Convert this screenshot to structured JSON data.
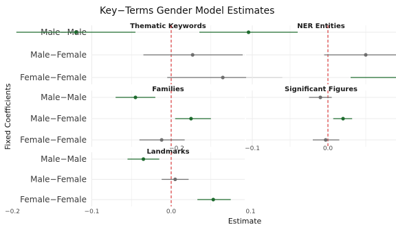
{
  "chart_data": {
    "type": "forest-plot",
    "title": "Key−Terms Gender Model Estimates",
    "xlabel": "Estimate",
    "ylabel": "Fixed Coefficients",
    "xlim": [
      -0.22,
      0.17
    ],
    "x_ticks": [
      "−0.2",
      "−0.1",
      "0.0",
      "0.1"
    ],
    "x_tick_values": [
      -0.2,
      -0.1,
      0.0,
      0.1
    ],
    "reference_line": 0.0,
    "categories": [
      "Male−Male",
      "Male−Female",
      "Female−Female"
    ],
    "grid": true,
    "colors": {
      "significant": "#1e6b2e",
      "not_significant": "#6e6e6e",
      "reference_line": "#d62728",
      "grid": "#ebebeb",
      "strip_background": "#ffffff"
    },
    "panels": [
      {
        "name": "Thematic Keywords",
        "series": [
          {
            "category": "Male−Male",
            "estimate": -0.12,
            "lower": -0.195,
            "upper": -0.045,
            "significant": true
          },
          {
            "category": "Male−Female",
            "estimate": 0.027,
            "lower": -0.035,
            "upper": 0.09,
            "significant": false
          },
          {
            "category": "Female−Female",
            "estimate": 0.065,
            "lower": -0.005,
            "upper": 0.14,
            "significant": false
          }
        ]
      },
      {
        "name": "NER Entities",
        "series": [
          {
            "category": "Male−Male",
            "estimate": -0.105,
            "lower": -0.17,
            "upper": -0.04,
            "significant": true
          },
          {
            "category": "Male−Female",
            "estimate": 0.05,
            "lower": -0.005,
            "upper": 0.11,
            "significant": false
          },
          {
            "category": "Female−Female",
            "estimate": 0.1,
            "lower": 0.03,
            "upper": 0.17,
            "significant": true
          }
        ]
      },
      {
        "name": "Families",
        "series": [
          {
            "category": "Male−Male",
            "estimate": -0.045,
            "lower": -0.07,
            "upper": -0.02,
            "significant": true
          },
          {
            "category": "Male−Female",
            "estimate": 0.025,
            "lower": 0.005,
            "upper": 0.05,
            "significant": true
          },
          {
            "category": "Female−Female",
            "estimate": -0.012,
            "lower": -0.04,
            "upper": 0.017,
            "significant": false
          }
        ]
      },
      {
        "name": "Significant Figures",
        "series": [
          {
            "category": "Male−Male",
            "estimate": -0.01,
            "lower": -0.025,
            "upper": 0.005,
            "significant": false
          },
          {
            "category": "Male−Female",
            "estimate": 0.02,
            "lower": 0.007,
            "upper": 0.032,
            "significant": true
          },
          {
            "category": "Female−Female",
            "estimate": -0.003,
            "lower": -0.02,
            "upper": 0.015,
            "significant": false
          }
        ]
      },
      {
        "name": "Landmarks",
        "series": [
          {
            "category": "Male−Male",
            "estimate": -0.035,
            "lower": -0.055,
            "upper": -0.015,
            "significant": true
          },
          {
            "category": "Male−Female",
            "estimate": 0.005,
            "lower": -0.012,
            "upper": 0.022,
            "significant": false
          },
          {
            "category": "Female−Female",
            "estimate": 0.053,
            "lower": 0.033,
            "upper": 0.075,
            "significant": true
          }
        ]
      }
    ]
  }
}
